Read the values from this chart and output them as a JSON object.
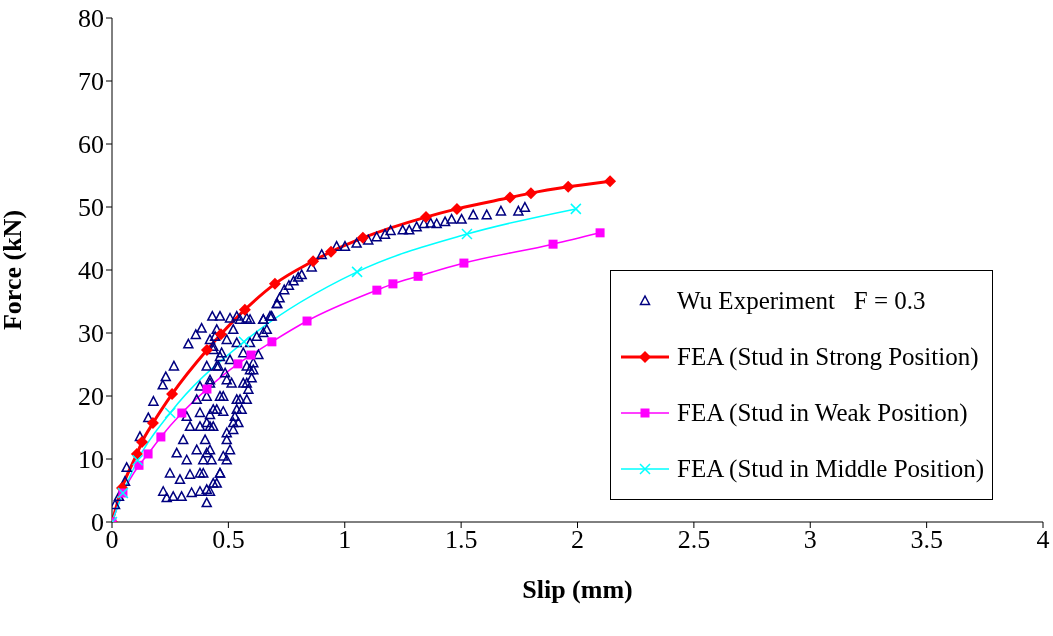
{
  "chart_data": {
    "type": "line",
    "xlabel": "Slip (mm)",
    "ylabel": "Force (kN)",
    "xlim": [
      0,
      4
    ],
    "ylim": [
      0,
      80
    ],
    "xticks": [
      0,
      0.5,
      1,
      1.5,
      2,
      2.5,
      3,
      3.5,
      4
    ],
    "yticks": [
      0,
      10,
      20,
      30,
      40,
      50,
      60,
      70,
      80
    ],
    "grid": false,
    "legend": "bottom right",
    "series": [
      {
        "name": "Wu Experiment   F = 0.3",
        "type": "scatter",
        "marker": "triangle",
        "color": "#000080",
        "x": [
          0.03,
          0.013,
          0.056,
          0.063,
          0.12,
          0.156,
          0.178,
          0.218,
          0.231,
          0.266,
          0.328,
          0.36,
          0.385,
          0.431,
          0.464,
          0.536,
          0.579,
          0.65,
          0.686,
          0.708,
          0.22,
          0.235,
          0.263,
          0.299,
          0.342,
          0.378,
          0.407,
          0.421,
          0.249,
          0.292,
          0.335,
          0.378,
          0.278,
          0.321,
          0.364,
          0.407,
          0.306,
          0.335,
          0.378,
          0.421,
          0.321,
          0.378,
          0.421,
          0.364,
          0.407,
          0.378,
          0.421,
          0.407,
          0.45,
          0.435,
          0.464,
          0.421,
          0.493,
          0.45,
          0.521,
          0.536,
          0.507,
          0.493,
          0.478,
          0.45,
          0.493,
          0.521,
          0.536,
          0.507,
          0.478,
          0.464,
          0.45,
          0.55,
          0.579,
          0.579,
          0.564,
          0.607,
          0.593,
          0.622,
          0.407,
          0.435,
          0.464,
          0.493,
          0.493,
          0.521,
          0.543,
          0.528,
          0.557,
          0.536,
          0.579,
          0.586,
          0.564,
          0.6,
          0.593,
          0.607,
          0.629,
          0.65,
          0.665,
          0.679,
          0.71,
          0.65,
          0.593,
          0.55,
          0.507,
          0.443,
          0.435,
          0.471,
          0.457,
          0.486,
          0.514,
          0.421,
          0.464,
          0.435,
          0.478,
          0.407,
          0.435,
          0.4,
          0.421,
          0.392,
          0.428,
          0.392,
          0.72,
          0.74,
          0.76,
          0.78,
          0.8,
          0.815,
          0.858,
          0.901,
          0.965,
          1.001,
          1.051,
          1.101,
          1.137,
          1.173,
          1.197,
          1.249,
          1.277,
          1.309,
          1.34,
          1.369,
          1.395,
          1.431,
          1.459,
          1.502,
          1.552,
          1.61,
          1.671,
          1.746,
          1.774
        ],
        "values": [
          4,
          2.7,
          6.4,
          8.6,
          13.5,
          16.5,
          19.1,
          21.7,
          23,
          24.7,
          28.2,
          29.7,
          30.7,
          32.6,
          32.6,
          32.6,
          32.3,
          32.1,
          32.6,
          34.6,
          4.8,
          3.8,
          4,
          4,
          4.6,
          4.8,
          3,
          4.8,
          7.7,
          6.7,
          7.5,
          7.7,
          10.9,
          9.8,
          11.4,
          10.9,
          13,
          15.1,
          15.1,
          15.1,
          16.7,
          17.3,
          17,
          19.4,
          19.9,
          21.5,
          22.5,
          24.7,
          24.7,
          27.3,
          26.2,
          28.9,
          28.9,
          30.5,
          30.5,
          28.4,
          25.7,
          22.5,
          19.9,
          17.8,
          14.1,
          15.7,
          17.8,
          11.4,
          10.4,
          7.7,
          6.1,
          19.4,
          22,
          24.7,
          26.8,
          24.1,
          28.4,
          29.4,
          5.1,
          6.1,
          7.7,
          9.8,
          13,
          14.6,
          15.7,
          16.7,
          17.8,
          19.4,
          19.4,
          21,
          22,
          22.8,
          24.1,
          25.2,
          26.5,
          30,
          30.5,
          32.6,
          34.6,
          32.1,
          32.1,
          32.1,
          32.3,
          29.4,
          27.8,
          26.8,
          24.7,
          23.6,
          22,
          22,
          19.9,
          17.8,
          17.5,
          15.7,
          15.1,
          13,
          11.4,
          9.8,
          9.8,
          7.7,
          35.5,
          36.8,
          37.5,
          38.2,
          38.8,
          39.2,
          40.4,
          42.4,
          43.7,
          43.7,
          44.2,
          44.7,
          45.2,
          45.6,
          46.2,
          46.3,
          46.3,
          46.8,
          47.3,
          47.4,
          47.3,
          47.6,
          48,
          48,
          48.7,
          48.7,
          49.3,
          49.3,
          49.9
        ]
      },
      {
        "name": "FEA (Stud in Strong Position)",
        "marker": "diamond",
        "color": "#ff0000",
        "x": [
          0,
          0.043,
          0.107,
          0.129,
          0.176,
          0.258,
          0.408,
          0.468,
          0.571,
          0.7,
          0.864,
          0.941,
          1.078,
          1.349,
          1.482,
          1.71,
          1.8,
          1.96,
          2.14
        ],
        "values": [
          0,
          5.4,
          10.8,
          12.7,
          15.7,
          20.3,
          27.3,
          29.8,
          33.7,
          37.8,
          41.4,
          42.9,
          45.1,
          48.4,
          49.7,
          51.5,
          52.2,
          53.2,
          54.1
        ]
      },
      {
        "name": "FEA (Stud in Weak Position)",
        "marker": "square",
        "color": "#ff00ff",
        "x": [
          0,
          0.047,
          0.116,
          0.155,
          0.21,
          0.3,
          0.408,
          0.541,
          0.597,
          0.687,
          0.838,
          1.138,
          1.207,
          1.315,
          1.512,
          1.895,
          2.097
        ],
        "values": [
          0,
          4.6,
          9,
          10.8,
          13.5,
          17.3,
          21.1,
          25.1,
          26.5,
          28.6,
          31.9,
          36.8,
          37.8,
          39,
          41.1,
          44.1,
          45.9
        ]
      },
      {
        "name": "FEA (Stud in Middle Position)",
        "marker": "cross",
        "color": "#00ffff",
        "x": [
          0,
          0.047,
          0.11,
          0.25,
          0.567,
          1.053,
          1.525,
          1.993
        ],
        "values": [
          0,
          4.6,
          9.8,
          17.3,
          28.6,
          39.7,
          45.7,
          49.7
        ]
      }
    ]
  }
}
